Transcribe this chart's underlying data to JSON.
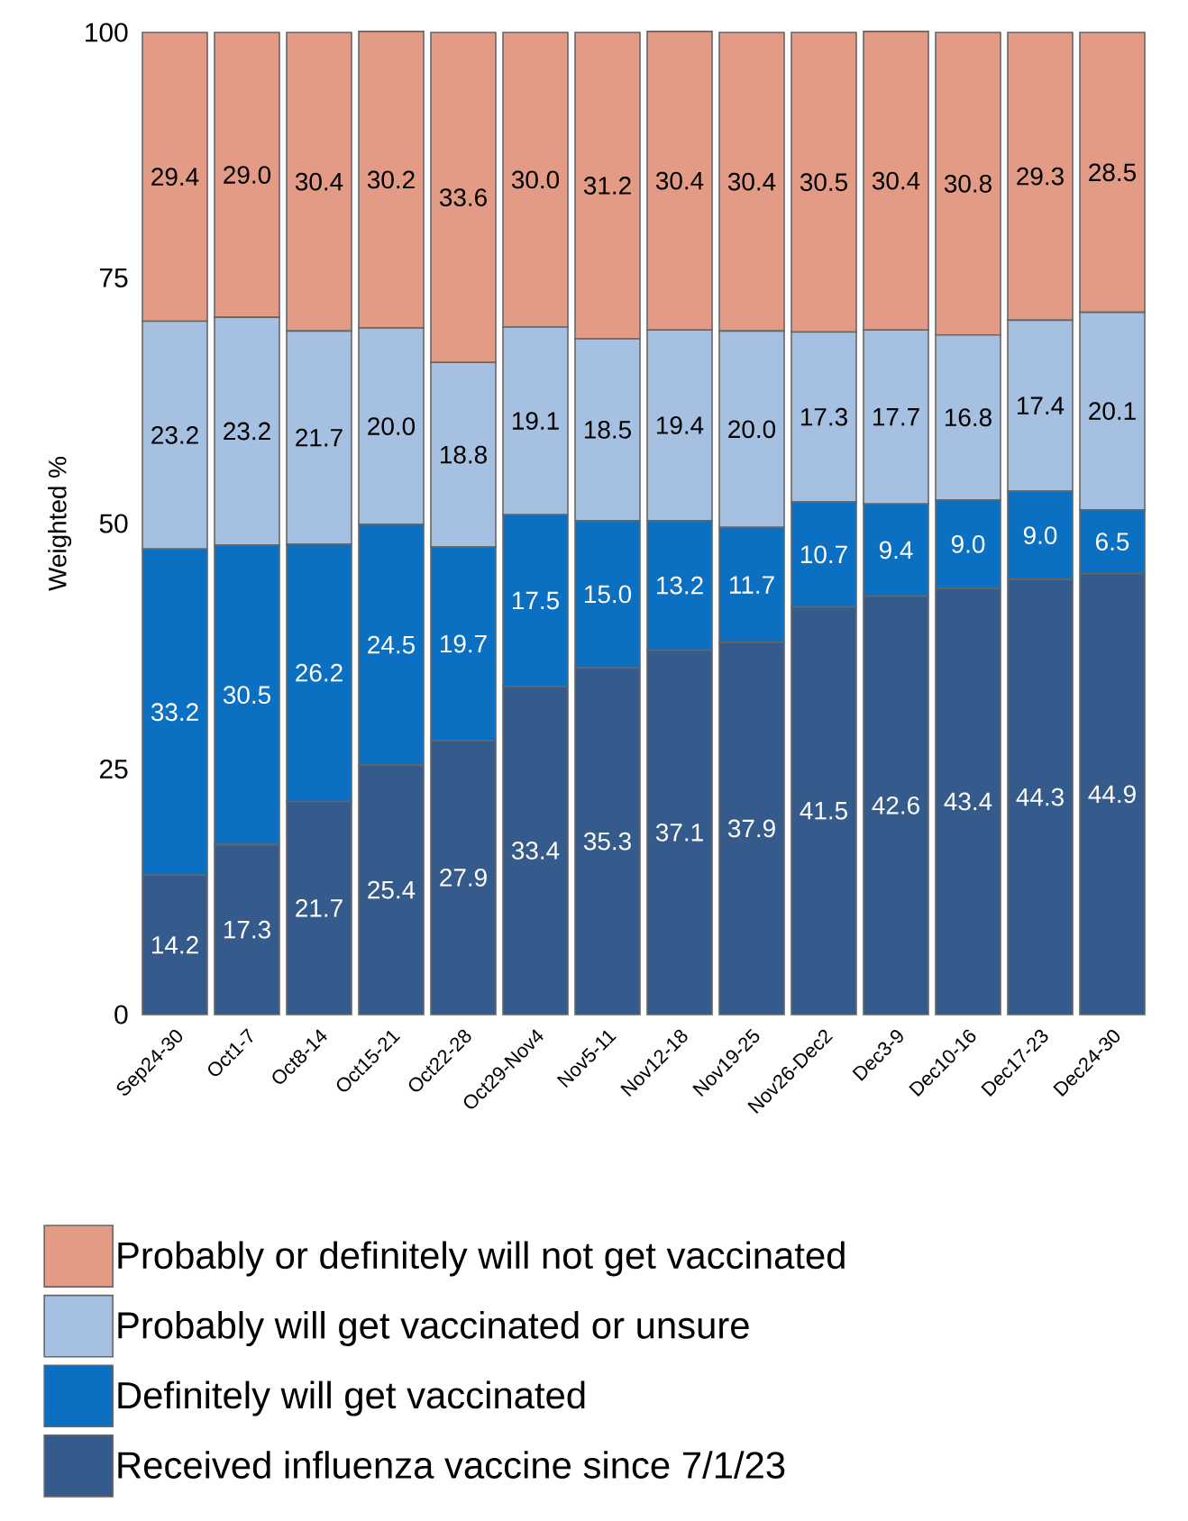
{
  "chart_data": {
    "type": "bar",
    "stacked": true,
    "ylabel": "Weighted %",
    "ylim": [
      0,
      100
    ],
    "yticks": [
      0,
      25,
      50,
      75,
      100
    ],
    "legend": "bottom",
    "categories": [
      "Sep24-30",
      "Oct1-7",
      "Oct8-14",
      "Oct15-21",
      "Oct22-28",
      "Oct29-Nov4",
      "Nov5-11",
      "Nov12-18",
      "Nov19-25",
      "Nov26-Dec2",
      "Dec3-9",
      "Dec10-16",
      "Dec17-23",
      "Dec24-30"
    ],
    "series": [
      {
        "name": "Received influenza vaccine since 7/1/23",
        "color": "#355b8d",
        "values": [
          14.2,
          17.3,
          21.7,
          25.4,
          27.9,
          33.4,
          35.3,
          37.1,
          37.9,
          41.5,
          42.6,
          43.4,
          44.3,
          44.9
        ],
        "value_labels": [
          "14.2",
          "17.3",
          "21.7",
          "25.4",
          "27.9",
          "33.4",
          "35.3",
          "37.1",
          "37.9",
          "41.5",
          "42.6",
          "43.4",
          "44.3",
          "44.9"
        ]
      },
      {
        "name": "Definitely will get vaccinated",
        "color": "#0b70c1",
        "values": [
          33.2,
          30.5,
          26.2,
          24.5,
          19.7,
          17.5,
          15.0,
          13.2,
          11.7,
          10.7,
          9.4,
          9.0,
          9.0,
          6.5
        ],
        "value_labels": [
          "33.2",
          "30.5",
          "26.2",
          "24.5",
          "19.7",
          "17.5",
          "15.0",
          "13.2",
          "11.7",
          "10.7",
          "9.4",
          "9.0",
          "9.0",
          "6.5"
        ]
      },
      {
        "name": "Probably will get vaccinated or unsure",
        "color": "#a6c0e2",
        "values": [
          23.2,
          23.2,
          21.7,
          20.0,
          18.8,
          19.1,
          18.5,
          19.4,
          20.0,
          17.3,
          17.7,
          16.8,
          17.4,
          20.1
        ],
        "value_labels": [
          "23.2",
          "23.2",
          "21.7",
          "20.0",
          "18.8",
          "19.1",
          "18.5",
          "19.4",
          "20.0",
          "17.3",
          "17.7",
          "16.8",
          "17.4",
          "20.1"
        ]
      },
      {
        "name": "Probably or definitely will not get vaccinated",
        "color": "#e39b85",
        "values": [
          29.4,
          29.0,
          30.4,
          30.2,
          33.6,
          30.0,
          31.2,
          30.4,
          30.4,
          30.5,
          30.4,
          30.8,
          29.3,
          28.5
        ],
        "value_labels": [
          "29.4",
          "29.0",
          "30.4",
          "30.2",
          "33.6",
          "30.0",
          "31.2",
          "30.4",
          "30.4",
          "30.5",
          "30.4",
          "30.8",
          "29.3",
          "28.5"
        ]
      }
    ]
  }
}
